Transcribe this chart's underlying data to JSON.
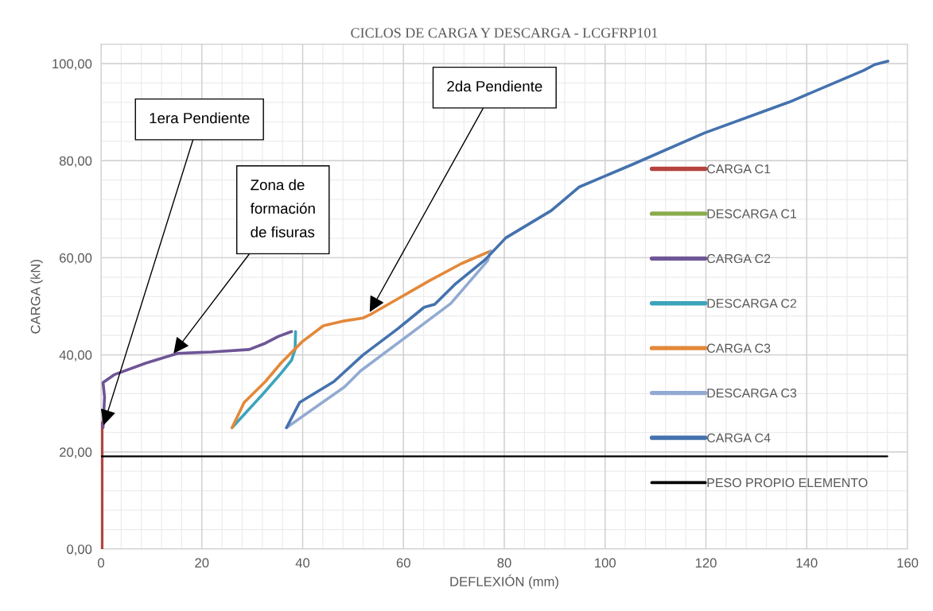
{
  "chart_data": {
    "type": "line",
    "title": "CICLOS DE CARGA Y DESCARGA - LCGFRP101",
    "xlabel": "DEFLEXIÓN (mm)",
    "ylabel": "CARGA (kN)",
    "xlim": [
      0,
      160
    ],
    "xticks": [
      0,
      20,
      40,
      60,
      80,
      100,
      120,
      140,
      160
    ],
    "ylim": [
      0,
      104
    ],
    "yticks": [
      {
        "value": 0,
        "label": "0,00"
      },
      {
        "value": 20,
        "label": "20,00"
      },
      {
        "value": 40,
        "label": "40,00"
      },
      {
        "value": 60,
        "label": "60,00"
      },
      {
        "value": 80,
        "label": "80,00"
      },
      {
        "value": 100,
        "label": "100,00"
      }
    ],
    "grid": true,
    "legend": "right",
    "marker": "none",
    "line_style": "solid",
    "series": [
      {
        "name": "CARGA C1",
        "color": "#b5433e",
        "x": [
          0.2,
          0.2
        ],
        "values": [
          0,
          26
        ]
      },
      {
        "name": "DESCARGA C1",
        "color": "#8aac4c"
      },
      {
        "name": "CARGA C2",
        "color": "#6e5596",
        "x": [
          0.4,
          0.7,
          0.4,
          2.6,
          8.9,
          15.2,
          22.0,
          29.4,
          32.6,
          35.2,
          37.8
        ],
        "values": [
          25.0,
          31.3,
          34.3,
          35.9,
          38.3,
          40.3,
          40.6,
          41.1,
          42.4,
          43.8,
          44.8
        ]
      },
      {
        "name": "DESCARGA C2",
        "color": "#3ca4bc",
        "x": [
          38.6,
          38.5,
          37.8,
          35.7,
          32.0,
          26.0
        ],
        "values": [
          44.8,
          41.1,
          38.9,
          36.2,
          31.8,
          25.0
        ]
      },
      {
        "name": "CARGA C3",
        "color": "#e3883a",
        "x": [
          26.0,
          28.4,
          32.6,
          35.7,
          39.9,
          44.1,
          48.3,
          52.0,
          53.6,
          65.2,
          71.5,
          77.3
        ],
        "values": [
          25.0,
          30.2,
          34.5,
          38.3,
          42.7,
          46.0,
          47.0,
          47.6,
          48.4,
          55.3,
          58.8,
          61.4
        ]
      },
      {
        "name": "DESCARGA C3",
        "color": "#92aad2",
        "x": [
          77.3,
          76.7,
          69.4,
          51.5,
          48.3,
          36.8
        ],
        "values": [
          61.4,
          59.4,
          50.6,
          36.7,
          33.4,
          25.0
        ]
      },
      {
        "name": "CARGA C4",
        "color": "#4472ae",
        "x": [
          36.8,
          39.4,
          46.2,
          52.0,
          58.9,
          64.1,
          66.2,
          70.4,
          76.2,
          80.3,
          89.3,
          94.9,
          105.6,
          119.7,
          136.6,
          151.3,
          153.5,
          156.1
        ],
        "values": [
          25.0,
          30.2,
          34.5,
          40.0,
          45.4,
          49.8,
          50.4,
          54.7,
          59.6,
          64.1,
          69.7,
          74.6,
          79.3,
          85.7,
          92.1,
          98.6,
          99.8,
          100.5
        ]
      },
      {
        "name": "PESO PROPIO ELEMENTO",
        "color": "#000000",
        "x": [
          0,
          156
        ],
        "values": [
          19.1,
          19.1
        ]
      }
    ],
    "annotations": [
      {
        "text": "1era Pendiente",
        "x": 0.5,
        "y": 25.5
      },
      {
        "text": "Zona de\nformación\nde fisuras",
        "x": 14.4,
        "y": 40.3
      },
      {
        "text": "2da Pendiente",
        "x": 53.3,
        "y": 48.8
      }
    ]
  }
}
